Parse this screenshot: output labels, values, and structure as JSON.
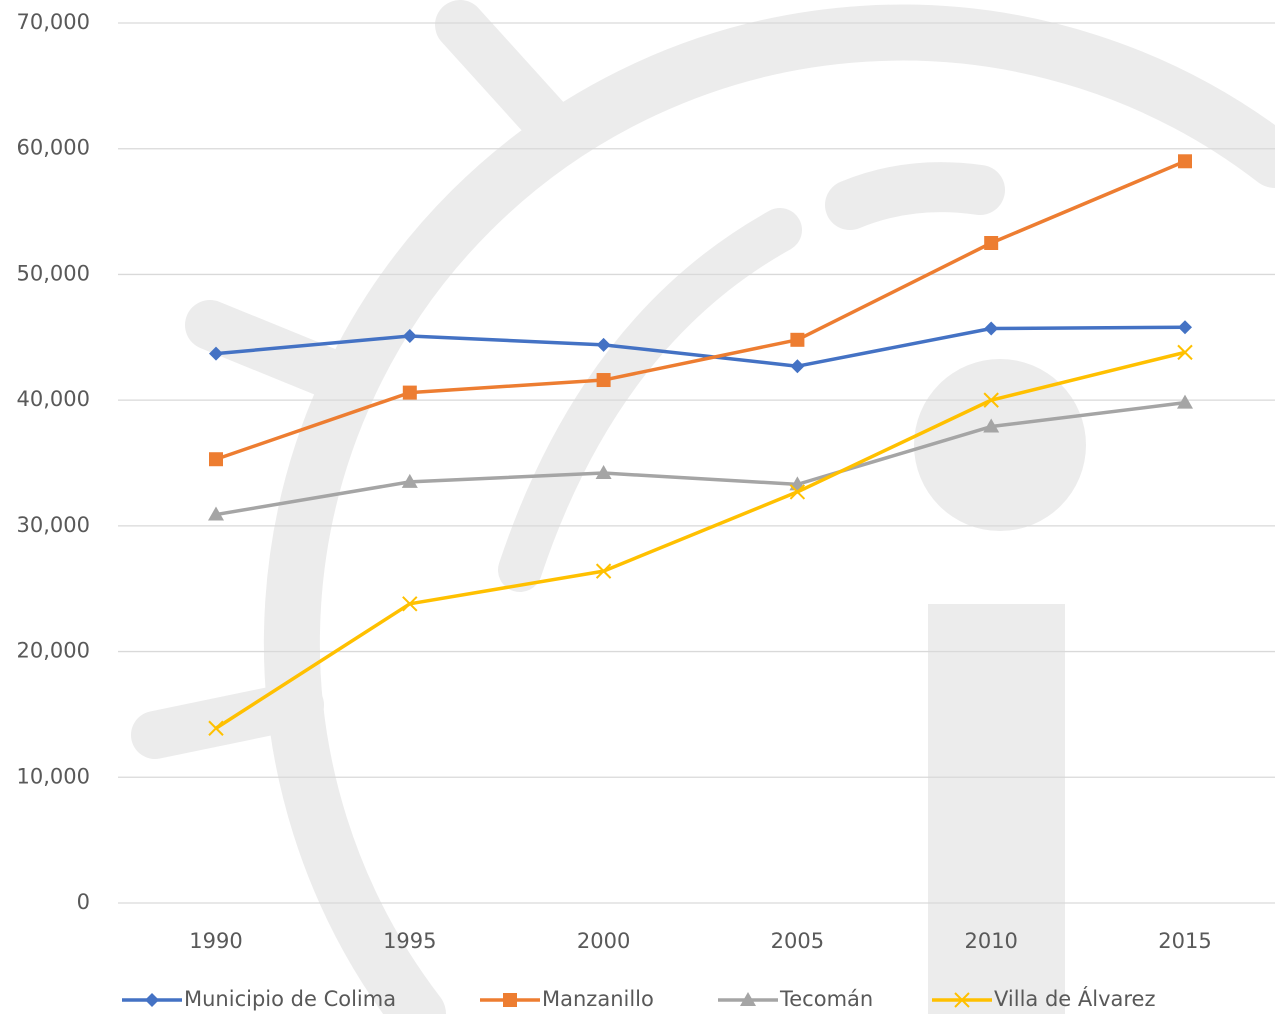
{
  "chart_data": {
    "type": "line",
    "categories": [
      "1990",
      "1995",
      "2000",
      "2005",
      "2010",
      "2015"
    ],
    "series": [
      {
        "name": "Municipio de Colima",
        "color": "#4472c4",
        "marker": "diamond",
        "values": [
          43700,
          45100,
          44400,
          42700,
          45700,
          45800
        ]
      },
      {
        "name": "Manzanillo",
        "color": "#ed7d31",
        "marker": "square",
        "values": [
          35300,
          40600,
          41600,
          44800,
          52500,
          59000
        ]
      },
      {
        "name": "Tecomán",
        "color": "#a5a5a5",
        "marker": "triangle",
        "values": [
          30900,
          33500,
          34200,
          33300,
          37900,
          39800
        ]
      },
      {
        "name": "Villa de Álvarez",
        "color": "#ffc000",
        "marker": "x",
        "values": [
          13900,
          23800,
          26400,
          32700,
          40000,
          43800
        ]
      }
    ],
    "ylim": [
      0,
      70000
    ],
    "yticks": [
      0,
      {
        "value": 10000,
        "label": "10,000"
      },
      {
        "value": 20000,
        "label": "20,000"
      },
      {
        "value": 30000,
        "label": "30,000"
      },
      {
        "value": 40000,
        "label": "40,000"
      },
      {
        "value": 50000,
        "label": "50,000"
      },
      {
        "value": 60000,
        "label": "60,000"
      },
      {
        "value": 70000,
        "label": "70,000"
      }
    ],
    "grid": true,
    "legend": "bottom"
  }
}
